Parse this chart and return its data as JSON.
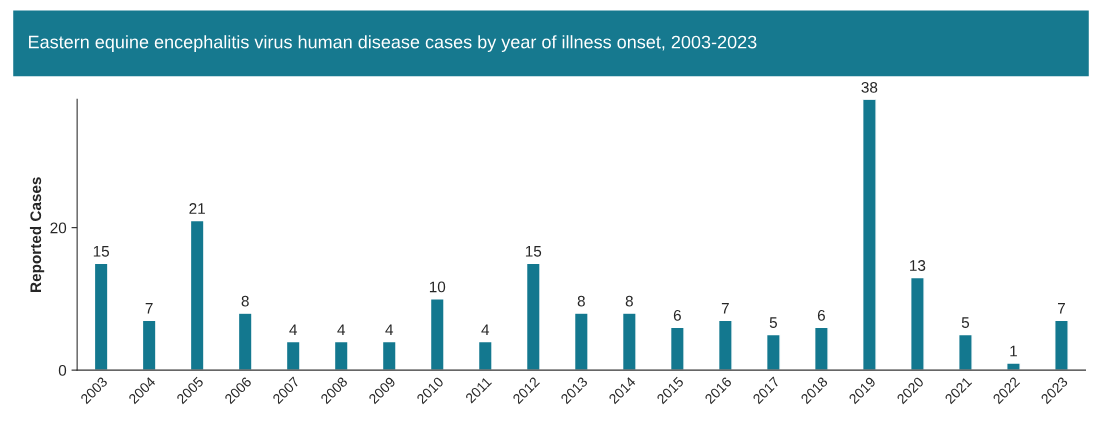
{
  "chart_data": {
    "type": "bar",
    "title": "Eastern equine encephalitis virus human disease cases by year of illness onset, 2003-2023",
    "ylabel": "Reported Cases",
    "categories": [
      "2003",
      "2004",
      "2005",
      "2006",
      "2007",
      "2008",
      "2009",
      "2010",
      "2011",
      "2012",
      "2013",
      "2014",
      "2015",
      "2016",
      "2017",
      "2018",
      "2019",
      "2020",
      "2021",
      "2022",
      "2023"
    ],
    "values": [
      15,
      7,
      21,
      8,
      4,
      4,
      4,
      10,
      4,
      15,
      8,
      8,
      6,
      7,
      5,
      6,
      38,
      13,
      5,
      1,
      7
    ],
    "color": "#13788f",
    "ylim": [
      0,
      38
    ],
    "yticks": [
      0,
      20
    ],
    "grid": false,
    "data_labels": true
  }
}
